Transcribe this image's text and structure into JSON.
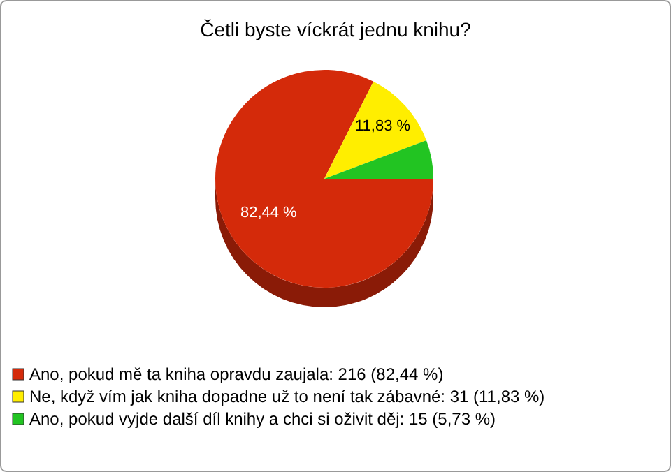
{
  "chart_data": {
    "type": "pie",
    "title": "Četli byste víckrát jednu knihu?",
    "categories": [
      "Ano, pokud mě ta kniha opravdu zaujala: 216 (82,44 %)",
      "Ne, když vím jak kniha dopadne už to není tak zábavné: 31 (11,83 %)",
      "Ano, pokud vyjde další díl knihy a chci si oživit děj: 15 (5,73 %)"
    ],
    "values": [
      82.44,
      11.83,
      5.73
    ],
    "colors": [
      "#d42a0a",
      "#ffee00",
      "#22c422"
    ],
    "value_labels": [
      "82,44 %",
      "11,83 %",
      null
    ],
    "legend": "bottom left"
  }
}
